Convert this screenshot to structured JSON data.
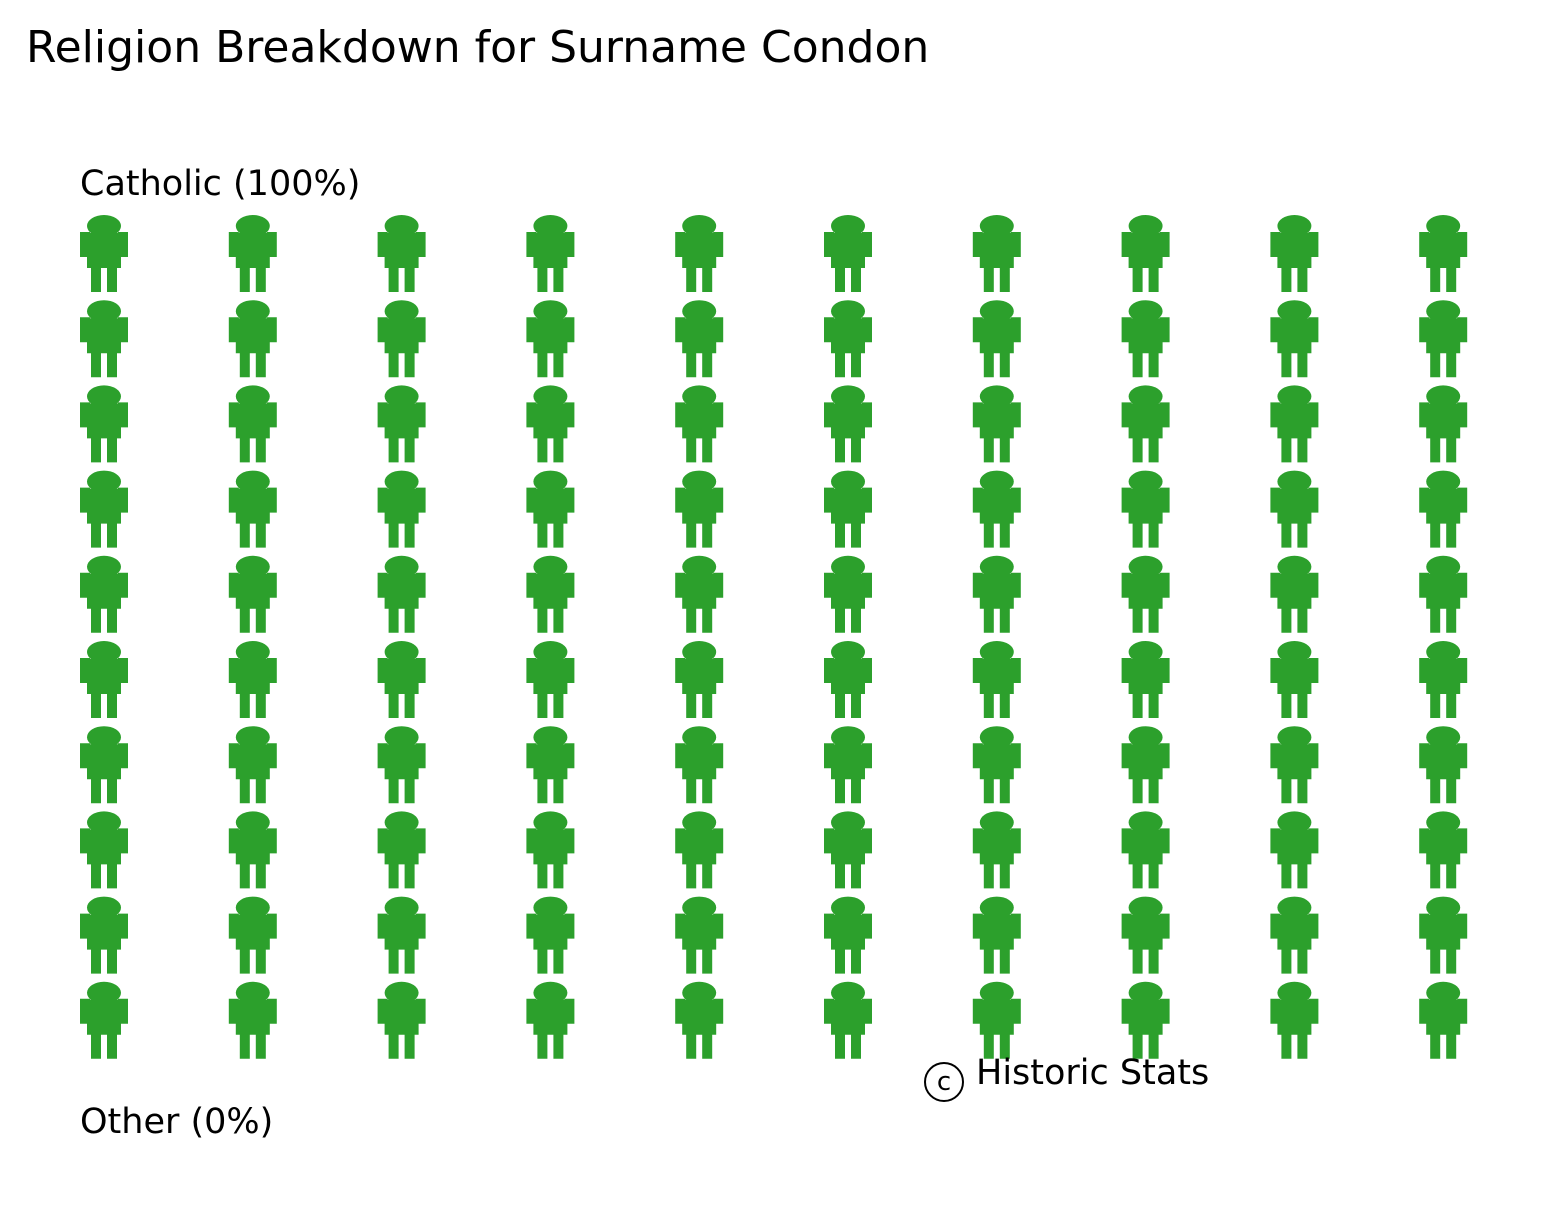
{
  "chart_data": {
    "type": "pictogram",
    "title": "Religion Breakdown for Surname Condon",
    "unit_icon": "person-icon",
    "grid": {
      "rows": 10,
      "columns": 10
    },
    "categories": [
      {
        "name": "Catholic",
        "percent": 100,
        "label": "Catholic (100%)",
        "color": "#2ca02c"
      },
      {
        "name": "Other",
        "percent": 0,
        "label": "Other (0%)",
        "color": "#d62728"
      }
    ]
  },
  "credit": {
    "symbol": "c",
    "text": "Historic Stats"
  }
}
